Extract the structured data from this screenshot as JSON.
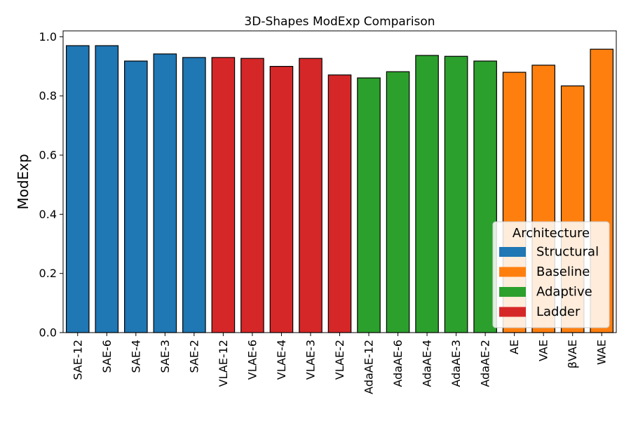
{
  "chart_data": {
    "type": "bar",
    "title": "3D-Shapes ModExp Comparison",
    "xlabel": "",
    "ylabel": "ModExp",
    "ylim": [
      0,
      1.02
    ],
    "yticks": [
      "0.0",
      "0.2",
      "0.4",
      "0.6",
      "0.8",
      "1.0"
    ],
    "grid": false,
    "legend_position": "bottom-right",
    "categories": [
      "SAE-12",
      "SAE-6",
      "SAE-4",
      "SAE-3",
      "SAE-2",
      "VLAE-12",
      "VLAE-6",
      "VLAE-4",
      "VLAE-3",
      "VLAE-2",
      "AdaAE-12",
      "AdaAE-6",
      "AdaAE-4",
      "AdaAE-3",
      "AdaAE-2",
      "AE",
      "VAE",
      "βVAE",
      "WAE"
    ],
    "values": [
      0.97,
      0.97,
      0.918,
      0.942,
      0.93,
      0.93,
      0.927,
      0.9,
      0.927,
      0.871,
      0.861,
      0.882,
      0.937,
      0.934,
      0.918,
      0.88,
      0.904,
      0.834,
      0.958
    ],
    "groups": [
      "Structural",
      "Structural",
      "Structural",
      "Structural",
      "Structural",
      "Ladder",
      "Ladder",
      "Ladder",
      "Ladder",
      "Ladder",
      "Adaptive",
      "Adaptive",
      "Adaptive",
      "Adaptive",
      "Adaptive",
      "Baseline",
      "Baseline",
      "Baseline",
      "Baseline"
    ],
    "legend": {
      "title": "Architecture",
      "entries": [
        {
          "name": "Structural",
          "color": "#1f77b4"
        },
        {
          "name": "Baseline",
          "color": "#ff7f0e"
        },
        {
          "name": "Adaptive",
          "color": "#2ca02c"
        },
        {
          "name": "Ladder",
          "color": "#d62728"
        }
      ]
    }
  }
}
